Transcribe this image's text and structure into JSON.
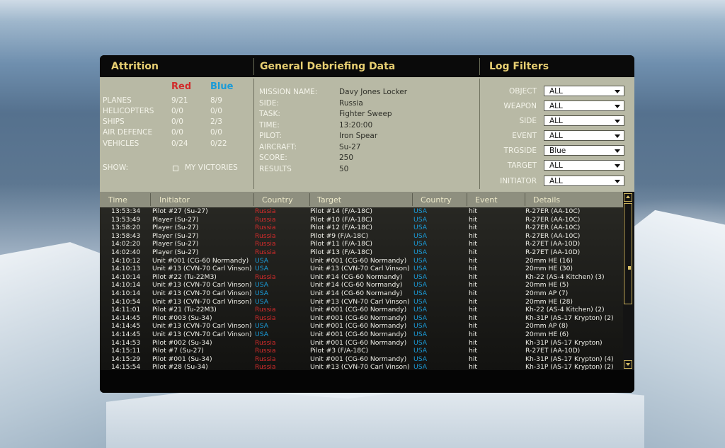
{
  "header": {
    "attrition_title": "Attrition",
    "general_title": "General Debriefing Data",
    "filters_title": "Log Filters"
  },
  "attrition": {
    "red_label": "Red",
    "blue_label": "Blue",
    "rows": [
      {
        "label": "PLANES",
        "red": "9/21",
        "blue": "8/9"
      },
      {
        "label": "HELICOPTERS",
        "red": "0/0",
        "blue": "0/0"
      },
      {
        "label": "SHIPS",
        "red": "0/0",
        "blue": "2/3"
      },
      {
        "label": "AIR DEFENCE",
        "red": "0/0",
        "blue": "0/0"
      },
      {
        "label": "VEHICLES",
        "red": "0/24",
        "blue": "0/22"
      }
    ],
    "show_label": "SHOW:",
    "my_victories_label": "MY VICTORIES"
  },
  "general": {
    "rows": [
      {
        "label": "MISSION NAME:",
        "value": "Davy Jones Locker"
      },
      {
        "label": "SIDE:",
        "value": "Russia"
      },
      {
        "label": "TASK:",
        "value": "Fighter Sweep"
      },
      {
        "label": "TIME:",
        "value": "13:20:00"
      },
      {
        "label": "PILOT:",
        "value": "Iron Spear"
      },
      {
        "label": "AIRCRAFT:",
        "value": "Su-27"
      },
      {
        "label": "SCORE:",
        "value": "250"
      },
      {
        "label": "RESULTS",
        "value": "50"
      }
    ]
  },
  "filters": [
    {
      "label": "OBJECT",
      "value": "ALL"
    },
    {
      "label": "WEAPON",
      "value": "ALL"
    },
    {
      "label": "SIDE",
      "value": "ALL"
    },
    {
      "label": "EVENT",
      "value": "ALL"
    },
    {
      "label": "TRGSIDE",
      "value": "Blue"
    },
    {
      "label": "TARGET",
      "value": "ALL"
    },
    {
      "label": "INITIATOR",
      "value": "ALL"
    }
  ],
  "table": {
    "columns": {
      "time": "Time",
      "initiator": "Initiator",
      "country": "Country",
      "target": "Target",
      "target_country": "Country",
      "event": "Event",
      "details": "Details"
    },
    "colors": {
      "Russia": "#d12b2b",
      "USA": "#1a9bd8"
    },
    "rows": [
      {
        "time": "13:53:34",
        "initiator": "Pilot #27 (Su-27)",
        "country": "Russia",
        "target": "Pilot #14 (F/A-18C)",
        "tcountry": "USA",
        "event": "hit",
        "details": "R-27ER (AA-10C)"
      },
      {
        "time": "13:53:49",
        "initiator": "Player (Su-27)",
        "country": "Russia",
        "target": "Pilot #10 (F/A-18C)",
        "tcountry": "USA",
        "event": "hit",
        "details": "R-27ER (AA-10C)"
      },
      {
        "time": "13:58:20",
        "initiator": "Player (Su-27)",
        "country": "Russia",
        "target": "Pilot #12 (F/A-18C)",
        "tcountry": "USA",
        "event": "hit",
        "details": "R-27ER (AA-10C)"
      },
      {
        "time": "13:58:43",
        "initiator": "Player (Su-27)",
        "country": "Russia",
        "target": "Pilot #9 (F/A-18C)",
        "tcountry": "USA",
        "event": "hit",
        "details": "R-27ER (AA-10C)"
      },
      {
        "time": "14:02:20",
        "initiator": "Player (Su-27)",
        "country": "Russia",
        "target": "Pilot #11 (F/A-18C)",
        "tcountry": "USA",
        "event": "hit",
        "details": "R-27ET (AA-10D)"
      },
      {
        "time": "14:02:40",
        "initiator": "Player (Su-27)",
        "country": "Russia",
        "target": "Pilot #13 (F/A-18C)",
        "tcountry": "USA",
        "event": "hit",
        "details": "R-27ET (AA-10D)"
      },
      {
        "time": "14:10:12",
        "initiator": "Unit #001 (CG-60 Normandy)",
        "country": "USA",
        "target": "Unit #001 (CG-60 Normandy)",
        "tcountry": "USA",
        "event": "hit",
        "details": "20mm HE (16)"
      },
      {
        "time": "14:10:13",
        "initiator": "Unit #13 (CVN-70 Carl Vinson)",
        "country": "USA",
        "target": "Unit #13 (CVN-70 Carl Vinson)",
        "tcountry": "USA",
        "event": "hit",
        "details": "20mm HE (30)"
      },
      {
        "time": "14:10:14",
        "initiator": "Pilot #22 (Tu-22M3)",
        "country": "Russia",
        "target": "Unit #14 (CG-60 Normandy)",
        "tcountry": "USA",
        "event": "hit",
        "details": "Kh-22 (AS-4 Kitchen) (3)"
      },
      {
        "time": "14:10:14",
        "initiator": "Unit #13 (CVN-70 Carl Vinson)",
        "country": "USA",
        "target": "Unit #14 (CG-60 Normandy)",
        "tcountry": "USA",
        "event": "hit",
        "details": "20mm HE (5)"
      },
      {
        "time": "14:10:14",
        "initiator": "Unit #13 (CVN-70 Carl Vinson)",
        "country": "USA",
        "target": "Unit #14 (CG-60 Normandy)",
        "tcountry": "USA",
        "event": "hit",
        "details": "20mm AP (7)"
      },
      {
        "time": "14:10:54",
        "initiator": "Unit #13 (CVN-70 Carl Vinson)",
        "country": "USA",
        "target": "Unit #13 (CVN-70 Carl Vinson)",
        "tcountry": "USA",
        "event": "hit",
        "details": "20mm HE (28)"
      },
      {
        "time": "14:11:01",
        "initiator": "Pilot #21 (Tu-22M3)",
        "country": "Russia",
        "target": "Unit #001 (CG-60 Normandy)",
        "tcountry": "USA",
        "event": "hit",
        "details": "Kh-22 (AS-4 Kitchen) (2)"
      },
      {
        "time": "14:14:45",
        "initiator": "Pilot #003 (Su-34)",
        "country": "Russia",
        "target": "Unit #001 (CG-60 Normandy)",
        "tcountry": "USA",
        "event": "hit",
        "details": "Kh-31P (AS-17 Krypton) (2)"
      },
      {
        "time": "14:14:45",
        "initiator": "Unit #13 (CVN-70 Carl Vinson)",
        "country": "USA",
        "target": "Unit #001 (CG-60 Normandy)",
        "tcountry": "USA",
        "event": "hit",
        "details": "20mm AP (8)"
      },
      {
        "time": "14:14:45",
        "initiator": "Unit #13 (CVN-70 Carl Vinson)",
        "country": "USA",
        "target": "Unit #001 (CG-60 Normandy)",
        "tcountry": "USA",
        "event": "hit",
        "details": "20mm HE (6)"
      },
      {
        "time": "14:14:53",
        "initiator": "Pilot #002 (Su-34)",
        "country": "Russia",
        "target": "Unit #001 (CG-60 Normandy)",
        "tcountry": "USA",
        "event": "hit",
        "details": "Kh-31P (AS-17 Krypton)"
      },
      {
        "time": "14:15:11",
        "initiator": "Pilot #7 (Su-27)",
        "country": "Russia",
        "target": "Pilot #3 (F/A-18C)",
        "tcountry": "USA",
        "event": "hit",
        "details": "R-27ET (AA-10D)"
      },
      {
        "time": "14:15:29",
        "initiator": "Pilot #001 (Su-34)",
        "country": "Russia",
        "target": "Unit #001 (CG-60 Normandy)",
        "tcountry": "USA",
        "event": "hit",
        "details": "Kh-31P (AS-17 Krypton) (4)"
      },
      {
        "time": "14:15:54",
        "initiator": "Pilot #28 (Su-34)",
        "country": "Russia",
        "target": "Unit #13 (CVN-70 Carl Vinson)",
        "tcountry": "USA",
        "event": "hit",
        "details": "Kh-31P (AS-17 Krypton) (2)"
      }
    ]
  }
}
